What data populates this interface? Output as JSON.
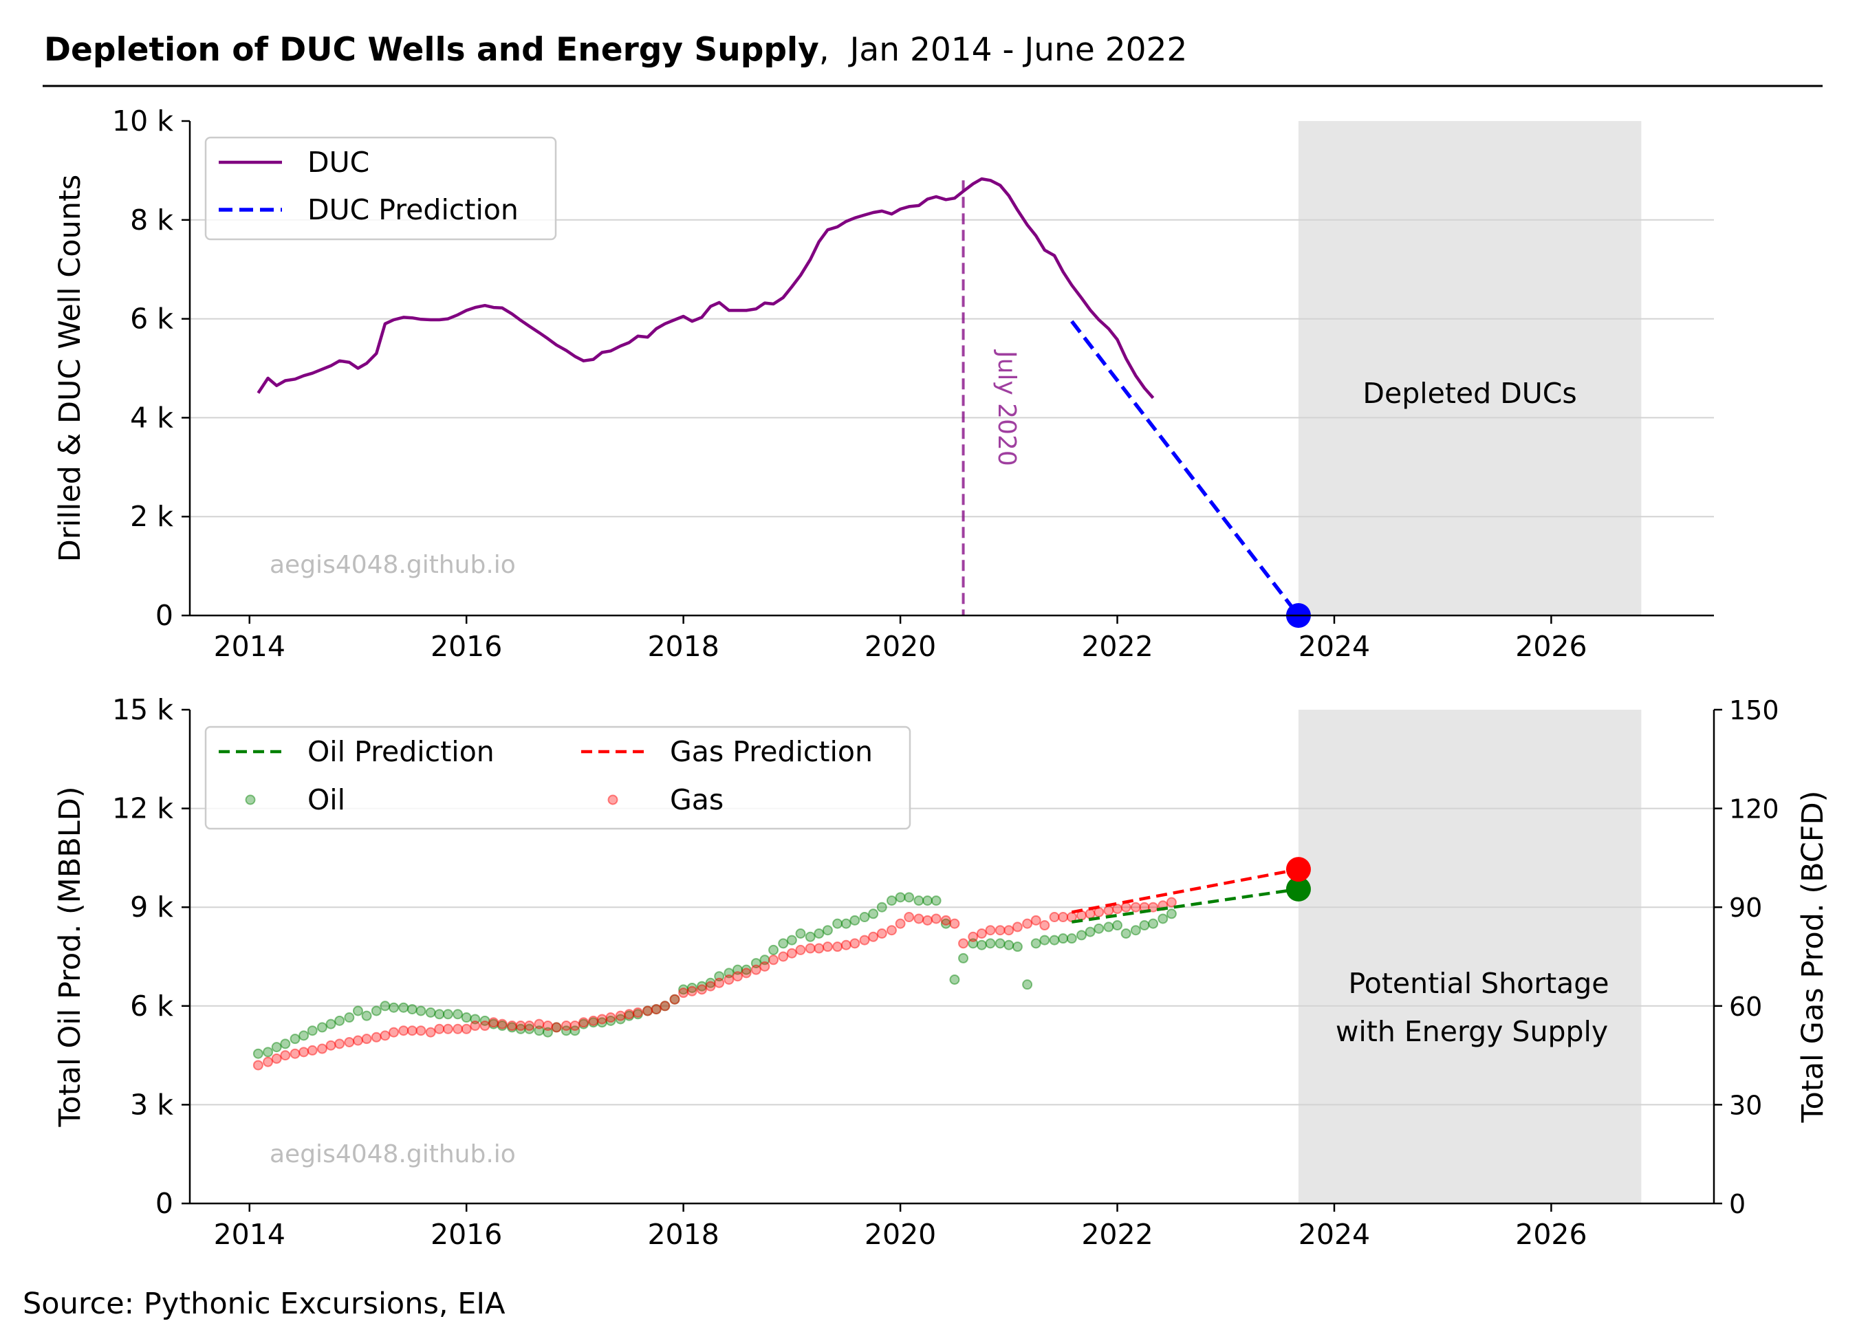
{
  "header": {
    "title_bold": "Depletion of DUC Wells and Energy Supply",
    "title_rest": ",  Jan 2014 - June 2022"
  },
  "source": "Source: Pythonic Excursions, EIA",
  "colors": {
    "duc": "#800080",
    "duc_prediction": "#0000ff",
    "oil": "#008000",
    "gas": "#ff0000",
    "shade": "#e6e6e6",
    "grid": "#d3d3d3",
    "watermark": "#bdbdbd"
  },
  "chart_data": [
    {
      "type": "line",
      "ylabel": "Drilled & DUC Well Counts",
      "xlim": [
        2013.45,
        2027.5
      ],
      "ylim": [
        0,
        10000
      ],
      "x_ticks": [
        2014,
        2016,
        2018,
        2020,
        2022,
        2024,
        2026
      ],
      "x_tick_labels": [
        "2014",
        "2016",
        "2018",
        "2020",
        "2022",
        "2024",
        "2026"
      ],
      "y_ticks": [
        0,
        2000,
        4000,
        6000,
        8000,
        10000
      ],
      "y_tick_labels": [
        "0",
        "2 k",
        "4 k",
        "6 k",
        "8 k",
        "10 k"
      ],
      "grid": "horizontal",
      "legend": {
        "placement": "top-left",
        "entries": [
          "DUC",
          "DUC Prediction"
        ]
      },
      "series": [
        {
          "name": "DUC",
          "style": "solid",
          "x": [
            2014.08,
            2014.17,
            2014.25,
            2014.33,
            2014.42,
            2014.5,
            2014.58,
            2014.67,
            2014.75,
            2014.83,
            2014.92,
            2015.0,
            2015.08,
            2015.17,
            2015.25,
            2015.33,
            2015.42,
            2015.5,
            2015.58,
            2015.67,
            2015.75,
            2015.83,
            2015.92,
            2016.0,
            2016.08,
            2016.17,
            2016.25,
            2016.33,
            2016.42,
            2016.5,
            2016.58,
            2016.67,
            2016.75,
            2016.83,
            2016.92,
            2017.0,
            2017.08,
            2017.17,
            2017.25,
            2017.33,
            2017.42,
            2017.5,
            2017.58,
            2017.67,
            2017.75,
            2017.83,
            2017.92,
            2018.0,
            2018.08,
            2018.17,
            2018.25,
            2018.33,
            2018.42,
            2018.5,
            2018.58,
            2018.67,
            2018.75,
            2018.83,
            2018.92,
            2019.0,
            2019.08,
            2019.17,
            2019.25,
            2019.33,
            2019.42,
            2019.5,
            2019.58,
            2019.67,
            2019.75,
            2019.83,
            2019.92,
            2020.0,
            2020.08,
            2020.17,
            2020.25,
            2020.33,
            2020.42,
            2020.5,
            2020.58,
            2020.67,
            2020.75,
            2020.83,
            2020.92,
            2021.0,
            2021.08,
            2021.17,
            2021.25,
            2021.33,
            2021.42,
            2021.5,
            2021.58,
            2021.67,
            2021.75,
            2021.83,
            2021.92,
            2022.0,
            2022.08,
            2022.17,
            2022.25,
            2022.33
          ],
          "values": [
            4500,
            4800,
            4650,
            4750,
            4780,
            4850,
            4900,
            4980,
            5050,
            5150,
            5120,
            5000,
            5100,
            5300,
            5900,
            5980,
            6030,
            6020,
            5990,
            5980,
            5980,
            6000,
            6080,
            6170,
            6230,
            6270,
            6230,
            6220,
            6100,
            5970,
            5850,
            5720,
            5600,
            5470,
            5360,
            5240,
            5150,
            5180,
            5320,
            5350,
            5450,
            5520,
            5650,
            5630,
            5800,
            5900,
            5980,
            6050,
            5950,
            6030,
            6250,
            6330,
            6170,
            6170,
            6170,
            6200,
            6320,
            6300,
            6430,
            6650,
            6880,
            7200,
            7560,
            7800,
            7860,
            7970,
            8040,
            8100,
            8150,
            8180,
            8120,
            8220,
            8270,
            8290,
            8420,
            8470,
            8410,
            8440,
            8580,
            8730,
            8830,
            8800,
            8700,
            8490,
            8200,
            7900,
            7680,
            7390,
            7280,
            6950,
            6680,
            6420,
            6180,
            5980,
            5800,
            5580,
            5200,
            4850,
            4600,
            4400
          ]
        },
        {
          "name": "DUC Prediction",
          "style": "dashed",
          "x": [
            2021.58,
            2023.67
          ],
          "values": [
            5950,
            0
          ]
        }
      ],
      "highlighted_points": [
        {
          "x": 2023.67,
          "y": 0,
          "color": "#0000ff"
        }
      ],
      "vertical_line": {
        "x": 2020.58,
        "label": "July 2020"
      },
      "shaded_region": {
        "x": [
          2023.67,
          2026.83
        ],
        "label": "Depleted DUCs"
      },
      "watermark": "aegis4048.github.io"
    },
    {
      "type": "scatter",
      "ylabel": "Total Oil Prod. (MBBLD)",
      "y2label": "Total Gas Prod. (BCFD)",
      "xlim": [
        2013.45,
        2027.5
      ],
      "ylim": [
        0,
        15000
      ],
      "y2lim": [
        0,
        150
      ],
      "x_ticks": [
        2014,
        2016,
        2018,
        2020,
        2022,
        2024,
        2026
      ],
      "x_tick_labels": [
        "2014",
        "2016",
        "2018",
        "2020",
        "2022",
        "2024",
        "2026"
      ],
      "y_ticks": [
        0,
        3000,
        6000,
        9000,
        12000,
        15000
      ],
      "y_tick_labels": [
        "0",
        "3 k",
        "6 k",
        "9 k",
        "12 k",
        "15 k"
      ],
      "y2_ticks": [
        0,
        30,
        60,
        90,
        120,
        150
      ],
      "y2_tick_labels": [
        "0",
        "30",
        "60",
        "90",
        "120",
        "150"
      ],
      "grid": "horizontal",
      "legend": {
        "placement": "top-left",
        "entries": [
          "Oil Prediction",
          "Gas Prediction",
          "Oil",
          "Gas"
        ]
      },
      "x": [
        2014.08,
        2014.17,
        2014.25,
        2014.33,
        2014.42,
        2014.5,
        2014.58,
        2014.67,
        2014.75,
        2014.83,
        2014.92,
        2015.0,
        2015.08,
        2015.17,
        2015.25,
        2015.33,
        2015.42,
        2015.5,
        2015.58,
        2015.67,
        2015.75,
        2015.83,
        2015.92,
        2016.0,
        2016.08,
        2016.17,
        2016.25,
        2016.33,
        2016.42,
        2016.5,
        2016.58,
        2016.67,
        2016.75,
        2016.83,
        2016.92,
        2017.0,
        2017.08,
        2017.17,
        2017.25,
        2017.33,
        2017.42,
        2017.5,
        2017.58,
        2017.67,
        2017.75,
        2017.83,
        2017.92,
        2018.0,
        2018.08,
        2018.17,
        2018.25,
        2018.33,
        2018.42,
        2018.5,
        2018.58,
        2018.67,
        2018.75,
        2018.83,
        2018.92,
        2019.0,
        2019.08,
        2019.17,
        2019.25,
        2019.33,
        2019.42,
        2019.5,
        2019.58,
        2019.67,
        2019.75,
        2019.83,
        2019.92,
        2020.0,
        2020.08,
        2020.17,
        2020.25,
        2020.33,
        2020.42,
        2020.5,
        2020.58,
        2020.67,
        2020.75,
        2020.83,
        2020.92,
        2021.0,
        2021.08,
        2021.17,
        2021.25,
        2021.33,
        2021.42,
        2021.5,
        2021.58,
        2021.67,
        2021.75,
        2021.83,
        2021.92,
        2022.0,
        2022.08,
        2022.17,
        2022.25,
        2022.33,
        2022.42,
        2022.5
      ],
      "series": [
        {
          "name": "Oil",
          "axis": "left",
          "values": [
            4550,
            4600,
            4750,
            4850,
            5000,
            5100,
            5250,
            5350,
            5450,
            5550,
            5650,
            5850,
            5700,
            5850,
            6000,
            5950,
            5950,
            5900,
            5850,
            5800,
            5750,
            5750,
            5750,
            5650,
            5600,
            5550,
            5450,
            5400,
            5350,
            5300,
            5300,
            5250,
            5200,
            5350,
            5250,
            5250,
            5450,
            5500,
            5500,
            5550,
            5600,
            5700,
            5750,
            5850,
            5900,
            6000,
            6200,
            6500,
            6550,
            6600,
            6700,
            6900,
            7000,
            7100,
            7100,
            7300,
            7400,
            7700,
            7900,
            8000,
            8200,
            8100,
            8200,
            8300,
            8500,
            8500,
            8600,
            8700,
            8800,
            9000,
            9200,
            9300,
            9300,
            9200,
            9200,
            9200,
            8500,
            6800,
            7450,
            7900,
            7850,
            7900,
            7900,
            7850,
            7800,
            6650,
            7900,
            8000,
            8000,
            8050,
            8050,
            8150,
            8250,
            8350,
            8400,
            8450,
            8200,
            8300,
            8450,
            8500,
            8650,
            8800
          ]
        },
        {
          "name": "Gas",
          "axis": "right",
          "values": [
            42,
            43,
            44,
            45,
            45.5,
            46,
            46.5,
            47,
            48,
            48.5,
            49,
            49.5,
            50,
            50.5,
            51,
            52,
            52.5,
            52.5,
            52.5,
            52,
            53,
            53,
            53,
            53,
            54,
            54,
            55,
            54.5,
            54,
            54,
            54,
            54.5,
            54,
            53.5,
            54,
            54,
            55,
            55.5,
            56,
            56.5,
            57,
            57.5,
            58,
            58.5,
            59,
            60,
            62,
            64,
            64.5,
            65,
            66,
            67,
            68,
            69,
            70,
            71,
            72,
            74,
            75,
            76,
            77,
            77.5,
            77.5,
            78,
            78,
            78.5,
            79,
            80,
            81,
            82,
            83,
            85,
            87,
            86.5,
            86,
            86.5,
            86,
            85,
            79,
            81,
            82,
            83,
            83,
            83,
            84,
            85,
            86,
            84.5,
            87,
            87,
            87,
            87.5,
            88,
            88.5,
            89,
            89.5,
            90,
            90,
            90,
            90,
            90.5,
            91.5
          ]
        },
        {
          "name": "Oil Prediction",
          "axis": "left",
          "style": "dashed",
          "x": [
            2021.58,
            2023.67
          ],
          "values": [
            8550,
            9550
          ]
        },
        {
          "name": "Gas Prediction",
          "axis": "right",
          "style": "dashed",
          "x": [
            2021.58,
            2023.67
          ],
          "values": [
            88.5,
            101.5
          ]
        }
      ],
      "highlighted_points": [
        {
          "x": 2023.67,
          "y": 9550,
          "axis": "left",
          "color": "#008000"
        },
        {
          "x": 2023.67,
          "y": 101.5,
          "axis": "right",
          "color": "#ff0000"
        }
      ],
      "shaded_region": {
        "x": [
          2023.67,
          2026.83
        ],
        "label_lines": [
          "Potential Shortage",
          "with Energy Supply"
        ]
      },
      "watermark": "aegis4048.github.io"
    }
  ]
}
